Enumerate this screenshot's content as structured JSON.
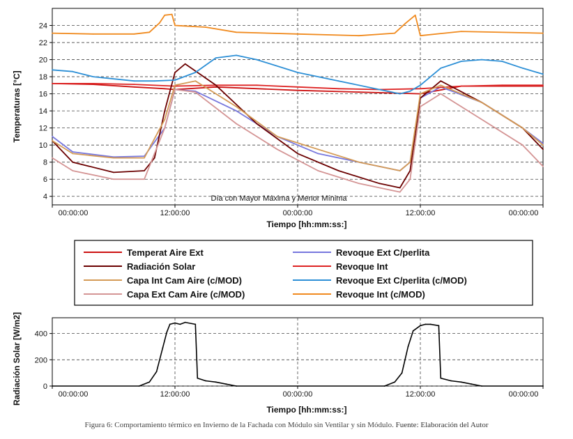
{
  "caption": {
    "text": "Figura 6: Comportamiento térmico en Invierno de la Fachada con Módulo sin Ventilar y sin Módulo.",
    "source": "Fuente: Elaboración del Autor"
  },
  "chart_data": [
    {
      "type": "line",
      "ylabel": "Temperaturas [°C]",
      "xlabel": "Tiempo [hh:mm:ss:]",
      "ylim": [
        3,
        26
      ],
      "yticks": [
        4,
        6,
        8,
        10,
        12,
        14,
        16,
        18,
        20,
        22,
        24
      ],
      "x_range_hours": [
        0,
        48
      ],
      "xtick_labels": [
        "00:00:00",
        "12:00:00",
        "00:00:00",
        "12:00:00",
        "00:00:00"
      ],
      "grid": true,
      "annotation": "Día con Mayor Máxima y Menor Mínima",
      "series": [
        {
          "name": "Temperat Aire Ext",
          "color": "#cc1111",
          "x": [
            0,
            4,
            8,
            11,
            12,
            16,
            24,
            30,
            36,
            40,
            48
          ],
          "y": [
            17.2,
            17.1,
            16.8,
            16.6,
            16.5,
            16.8,
            16.4,
            16.2,
            16.0,
            16.9,
            16.9
          ]
        },
        {
          "name": "Revoque Ext C/perlita",
          "color": "#7777dd",
          "x": [
            0,
            2,
            6,
            9,
            11,
            12,
            14,
            18,
            22,
            26,
            30,
            34,
            35,
            36,
            38,
            42,
            46,
            48
          ],
          "y": [
            11,
            9.2,
            8.6,
            8.7,
            12,
            16.5,
            16.3,
            14,
            11,
            9,
            8,
            7,
            8,
            15.5,
            16.8,
            15,
            12,
            10.2
          ]
        },
        {
          "name": "Revoque Int",
          "color": "#dd2222",
          "x": [
            0,
            4,
            8,
            12,
            16,
            20,
            24,
            28,
            32,
            36,
            40,
            44,
            48
          ],
          "y": [
            17.2,
            17.2,
            17.1,
            16.9,
            17,
            17,
            16.8,
            16.6,
            16.5,
            16.6,
            16.9,
            17,
            17
          ]
        },
        {
          "name": "Radiación Solar",
          "color": "#6b0000",
          "x": [
            0,
            2,
            6,
            9,
            10,
            11,
            12,
            13,
            16,
            20,
            24,
            28,
            32,
            34,
            35,
            36,
            37,
            38,
            42,
            46,
            48
          ],
          "y": [
            10.5,
            8,
            6.8,
            7,
            8.5,
            14,
            18.5,
            19.5,
            17,
            12.5,
            9,
            7,
            5.5,
            5,
            7,
            15.5,
            16.5,
            17.5,
            15,
            12,
            9.5
          ]
        },
        {
          "name": "Capa Int Cam Aire (c/MOD)",
          "color": "#d49a55",
          "x": [
            0,
            2,
            6,
            9,
            11,
            12,
            14,
            18,
            22,
            26,
            30,
            34,
            35,
            36,
            38,
            42,
            46,
            48
          ],
          "y": [
            10.5,
            9,
            8.5,
            8.5,
            13,
            17,
            17.5,
            14.5,
            11,
            9.5,
            8,
            7,
            8,
            16,
            17,
            15,
            12,
            10
          ]
        },
        {
          "name": "Revoque Ext C/perlita (c/MOD)",
          "color": "#2c8fd6",
          "x": [
            0,
            2,
            4,
            8,
            10,
            12,
            14,
            16,
            18,
            20,
            24,
            28,
            32,
            34,
            35,
            36,
            38,
            40,
            42,
            44,
            46,
            48
          ],
          "y": [
            18.8,
            18.6,
            18,
            17.5,
            17.5,
            17.6,
            18.5,
            20.2,
            20.5,
            20,
            18.5,
            17.5,
            16.5,
            16,
            16.3,
            17,
            19,
            19.8,
            20,
            19.8,
            19,
            18.3
          ]
        },
        {
          "name": "Capa Ext Cam Aire (c/MOD)",
          "color": "#d49494",
          "x": [
            0,
            2,
            6,
            9,
            11,
            12,
            14,
            18,
            22,
            26,
            30,
            34,
            35,
            36,
            38,
            42,
            46,
            48
          ],
          "y": [
            8.5,
            7,
            6,
            6,
            12,
            16.5,
            16.2,
            12.5,
            9.5,
            7,
            5.5,
            4.5,
            6,
            14.5,
            16,
            13,
            10,
            7.5
          ]
        },
        {
          "name": "Revoque Int (c/MOD)",
          "color": "#f08a1e",
          "x": [
            0,
            4,
            8,
            9.5,
            10.5,
            11,
            11.7,
            12,
            15,
            18,
            24,
            30,
            33.5,
            34.5,
            35.5,
            36,
            40,
            48
          ],
          "y": [
            23.1,
            23,
            23,
            23.2,
            24.3,
            25.2,
            25.3,
            24,
            23.8,
            23.2,
            23,
            22.8,
            23.1,
            24.2,
            25.2,
            22.8,
            23.3,
            23.1
          ]
        }
      ]
    },
    {
      "type": "area",
      "ylabel": "Radiación Solar [W/m2]",
      "xlabel": "Tiempo [hh:mm:ss:]",
      "ylim": [
        0,
        520
      ],
      "yticks": [
        0,
        200,
        400
      ],
      "x_range_hours": [
        0,
        48
      ],
      "xtick_labels": [
        "00:00:00",
        "12:00:00",
        "00:00:00",
        "12:00:00",
        "00:00:00"
      ],
      "grid": true,
      "series": [
        {
          "name": "Radiación Solar",
          "color": "#000000",
          "x": [
            0,
            8.5,
            9.5,
            10.2,
            10.8,
            11.2,
            11.5,
            12,
            12.5,
            13,
            14,
            14.2,
            15,
            16,
            17,
            18,
            32.5,
            33.5,
            34.2,
            34.8,
            35.3,
            36,
            36.5,
            37,
            37.8,
            38,
            39,
            40,
            41,
            42,
            48
          ],
          "y": [
            0,
            0,
            30,
            110,
            290,
            410,
            470,
            480,
            470,
            485,
            470,
            60,
            40,
            30,
            15,
            0,
            0,
            30,
            100,
            300,
            420,
            460,
            470,
            470,
            460,
            60,
            40,
            30,
            15,
            0,
            0
          ]
        }
      ]
    }
  ]
}
